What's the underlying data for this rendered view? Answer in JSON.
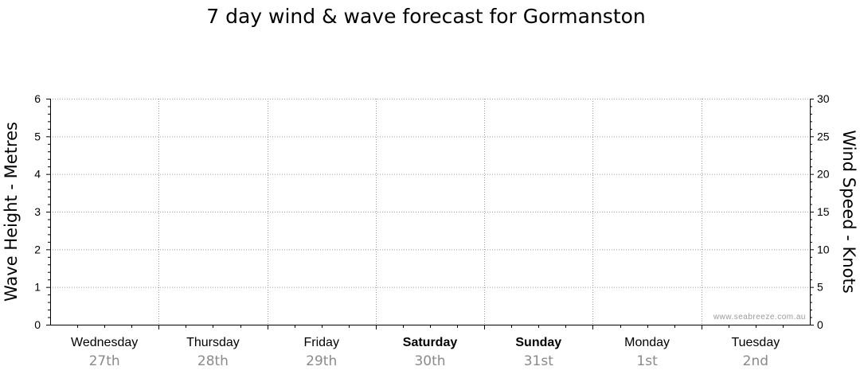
{
  "chart_data": {
    "type": "line",
    "title": "7 day wind & wave forecast for Gormanston",
    "ylabel": "Wave Height - Metres",
    "y2label": "Wind Speed - Knots",
    "ylim": [
      0,
      6
    ],
    "y2lim": [
      0,
      30
    ],
    "yticks": [
      "0",
      "1",
      "2",
      "3",
      "4",
      "5",
      "6"
    ],
    "y2ticks": [
      "0",
      "5",
      "10",
      "15",
      "20",
      "25",
      "30"
    ],
    "days": [
      {
        "name": "Wednesday",
        "date": "27th",
        "weekend": false
      },
      {
        "name": "Thursday",
        "date": "28th",
        "weekend": false
      },
      {
        "name": "Friday",
        "date": "29th",
        "weekend": false
      },
      {
        "name": "Saturday",
        "date": "30th",
        "weekend": true
      },
      {
        "name": "Sunday",
        "date": "31st",
        "weekend": true
      },
      {
        "name": "Monday",
        "date": "1st",
        "weekend": false
      },
      {
        "name": "Tuesday",
        "date": "2nd",
        "weekend": false
      }
    ],
    "series": [],
    "grid": true,
    "watermark": "www.seabreeze.com.au"
  }
}
